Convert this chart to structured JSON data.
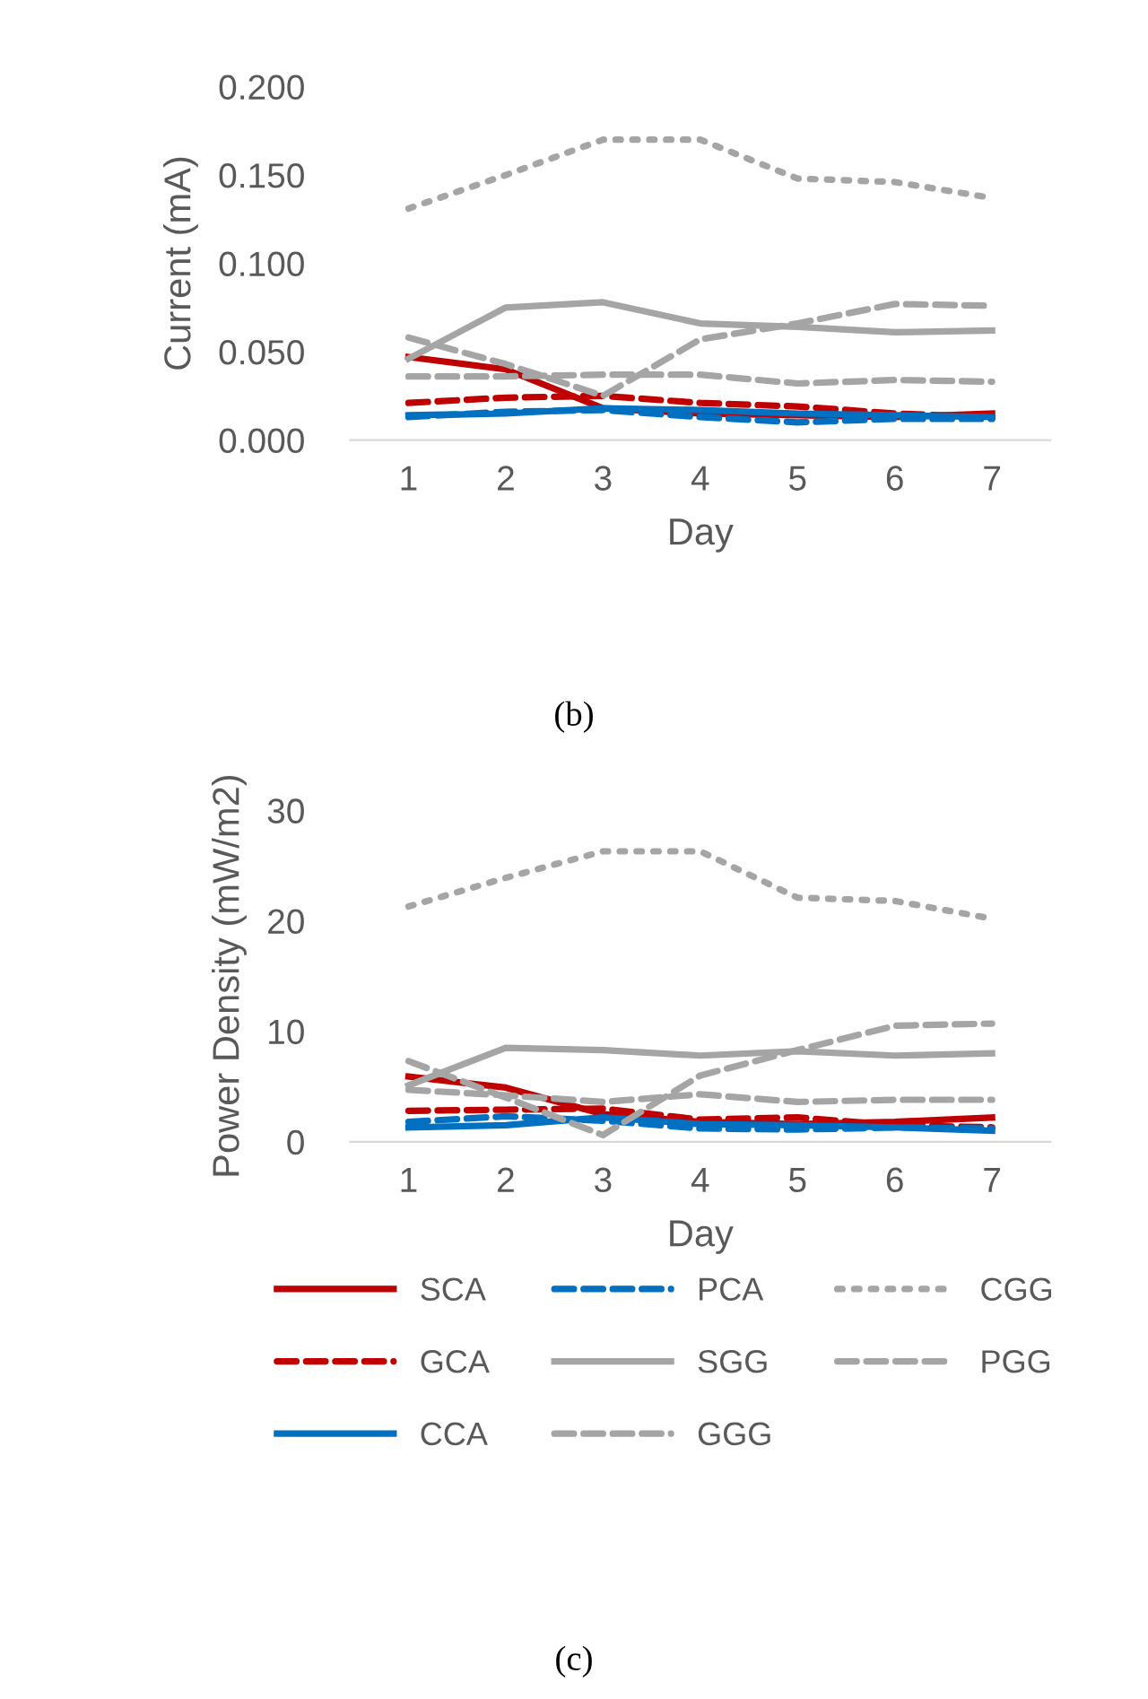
{
  "chart_data": [
    {
      "type": "line",
      "xlabel": "Day",
      "ylabel": "Current (mA)",
      "categories": [
        "1",
        "2",
        "3",
        "4",
        "5",
        "6",
        "7"
      ],
      "ylim": [
        0,
        0.2
      ],
      "yticks": [
        {
          "value": 0,
          "label": "0.000"
        },
        {
          "value": 0.05,
          "label": "0.050"
        },
        {
          "value": 0.1,
          "label": "0.100"
        },
        {
          "value": 0.15,
          "label": "0.150"
        },
        {
          "value": 0.2,
          "label": "0.200"
        }
      ],
      "grid": false,
      "legend": false,
      "annotations": [
        "(b)"
      ],
      "series": [
        {
          "color": "#c00000",
          "line_style": "solid",
          "values": [
            0.047,
            0.04,
            0.018,
            0.015,
            0.014,
            0.013,
            0.015
          ]
        },
        {
          "color": "#c00000",
          "line_style": "dashed",
          "values": [
            0.021,
            0.024,
            0.025,
            0.021,
            0.019,
            0.015,
            0.013
          ]
        },
        {
          "color": "#0070c0",
          "line_style": "solid",
          "values": [
            0.014,
            0.015,
            0.018,
            0.017,
            0.015,
            0.014,
            0.013
          ]
        },
        {
          "color": "#0070c0",
          "line_style": "dashed",
          "values": [
            0.013,
            0.016,
            0.017,
            0.013,
            0.01,
            0.012,
            0.012
          ]
        },
        {
          "color": "#a5a5a5",
          "line_style": "solid",
          "values": [
            0.046,
            0.075,
            0.078,
            0.066,
            0.064,
            0.061,
            0.062
          ]
        },
        {
          "color": "#a5a5a5",
          "line_style": "dashed",
          "values": [
            0.058,
            0.043,
            0.025,
            0.057,
            0.066,
            0.077,
            0.076
          ]
        },
        {
          "color": "#a5a5a5",
          "line_style": "dotted",
          "values": [
            0.131,
            0.15,
            0.17,
            0.17,
            0.148,
            0.146,
            0.137
          ]
        },
        {
          "color": "#a5a5a5",
          "line_style": "dashed",
          "values": [
            0.036,
            0.036,
            0.037,
            0.037,
            0.032,
            0.034,
            0.033
          ]
        }
      ]
    },
    {
      "type": "line",
      "xlabel": "Day",
      "ylabel": "Power Density (mW/m2)",
      "categories": [
        "1",
        "2",
        "3",
        "4",
        "5",
        "6",
        "7"
      ],
      "ylim": [
        0,
        30
      ],
      "yticks": [
        0,
        10,
        20,
        30
      ],
      "grid": false,
      "legend": "bottom",
      "annotations": [
        "(c)"
      ],
      "series": [
        {
          "name": "SCA",
          "color": "#c00000",
          "line_style": "solid",
          "values": [
            5.9,
            4.9,
            2.5,
            1.8,
            1.6,
            1.8,
            2.2
          ]
        },
        {
          "name": "GCA",
          "color": "#c00000",
          "line_style": "dashed",
          "values": [
            2.8,
            2.9,
            3.0,
            2.0,
            2.2,
            1.5,
            1.3
          ]
        },
        {
          "name": "CCA",
          "color": "#0070c0",
          "line_style": "solid",
          "values": [
            1.3,
            1.5,
            2.2,
            1.6,
            1.5,
            1.3,
            1.0
          ]
        },
        {
          "name": "PCA",
          "color": "#0070c0",
          "line_style": "dashed",
          "values": [
            1.8,
            2.3,
            1.9,
            1.2,
            1.1,
            1.3,
            1.2
          ]
        },
        {
          "name": "SGG",
          "color": "#a5a5a5",
          "line_style": "solid",
          "values": [
            5.1,
            8.5,
            8.3,
            7.8,
            8.2,
            7.8,
            8.0
          ]
        },
        {
          "name": "GGG",
          "color": "#a5a5a5",
          "line_style": "dashed",
          "values": [
            7.3,
            4.0,
            0.6,
            6.0,
            8.3,
            10.5,
            10.7
          ]
        },
        {
          "name": "CGG",
          "color": "#a5a5a5",
          "line_style": "dotted",
          "values": [
            21.3,
            23.9,
            26.3,
            26.3,
            22.1,
            21.8,
            20.2
          ]
        },
        {
          "name": "PGG",
          "color": "#a5a5a5",
          "line_style": "dashed",
          "values": [
            4.7,
            4.2,
            3.6,
            4.3,
            3.6,
            3.8,
            3.8
          ]
        }
      ]
    }
  ]
}
